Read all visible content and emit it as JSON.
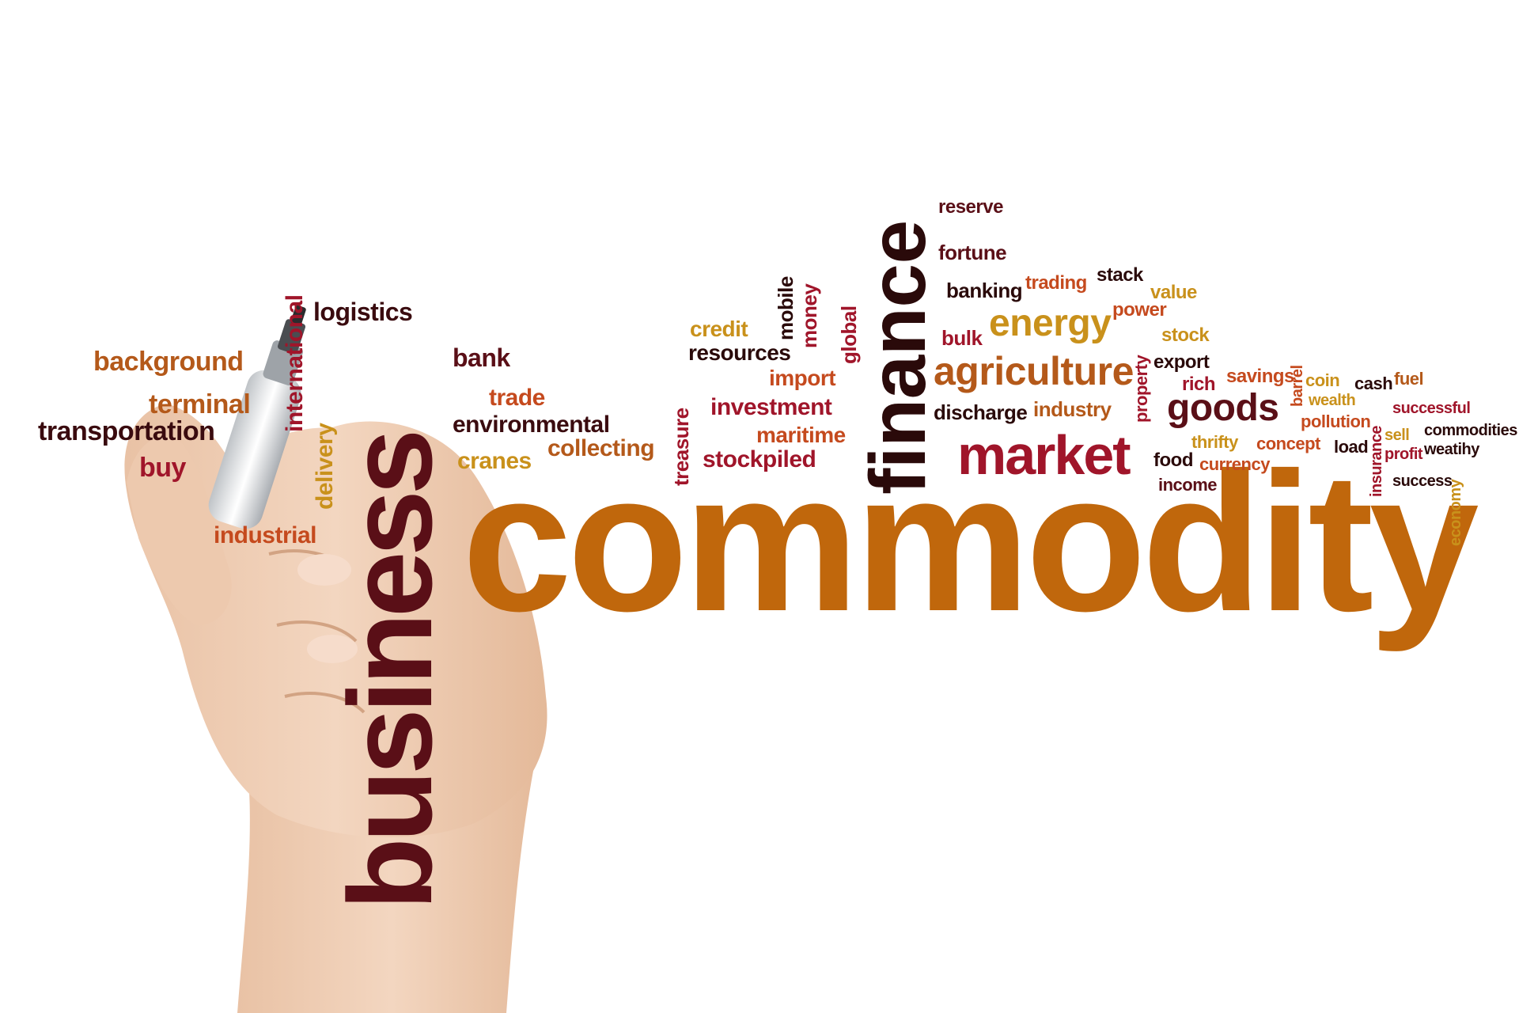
{
  "palette": {
    "orange": "#c0670c",
    "dark_red": "#5a0f17",
    "crimson": "#a0152a",
    "brown_orange": "#b4591a",
    "red_orange": "#c54a1e",
    "gold": "#c9911b",
    "near_black": "#2a0a0a",
    "skin": "#f0cfb6",
    "skin_shadow": "#d9ad8e"
  },
  "hand": {
    "icon": "hand-holding-marker-icon"
  },
  "words": {
    "commodity": "commodity",
    "business": "business",
    "finance": "finance",
    "market": "market",
    "agriculture": "agriculture",
    "energy": "energy",
    "goods": "goods",
    "background": "background",
    "terminal": "terminal",
    "transportation": "transportation",
    "buy": "buy",
    "international": "international",
    "delivery": "delivery",
    "industrial": "industrial",
    "logistics": "logistics",
    "bank": "bank",
    "trade": "trade",
    "environmental": "environmental",
    "cranes": "cranes",
    "collecting": "collecting",
    "treasure": "treasure",
    "credit": "credit",
    "resources": "resources",
    "mobile": "mobile",
    "money": "money",
    "global": "global",
    "import": "import",
    "investment": "investment",
    "maritime": "maritime",
    "stockpiled": "stockpiled",
    "reserve": "reserve",
    "fortune": "fortune",
    "banking": "banking",
    "trading": "trading",
    "stack": "stack",
    "value": "value",
    "power": "power",
    "bulk": "bulk",
    "stock": "stock",
    "property": "property",
    "export": "export",
    "rich": "rich",
    "discharge": "discharge",
    "industry": "industry",
    "savings": "savings",
    "barrel": "barrel",
    "coin": "coin",
    "cash": "cash",
    "fuel": "fuel",
    "wealth": "wealth",
    "successful": "successful",
    "pollution": "pollution",
    "insurance": "insurance",
    "sell": "sell",
    "commodities": "commodities",
    "thrifty": "thrifty",
    "concept": "concept",
    "load": "load",
    "profit": "profit",
    "weathy": "weatihy",
    "food": "food",
    "currency": "currency",
    "income": "income",
    "success": "success",
    "economy": "economy"
  }
}
